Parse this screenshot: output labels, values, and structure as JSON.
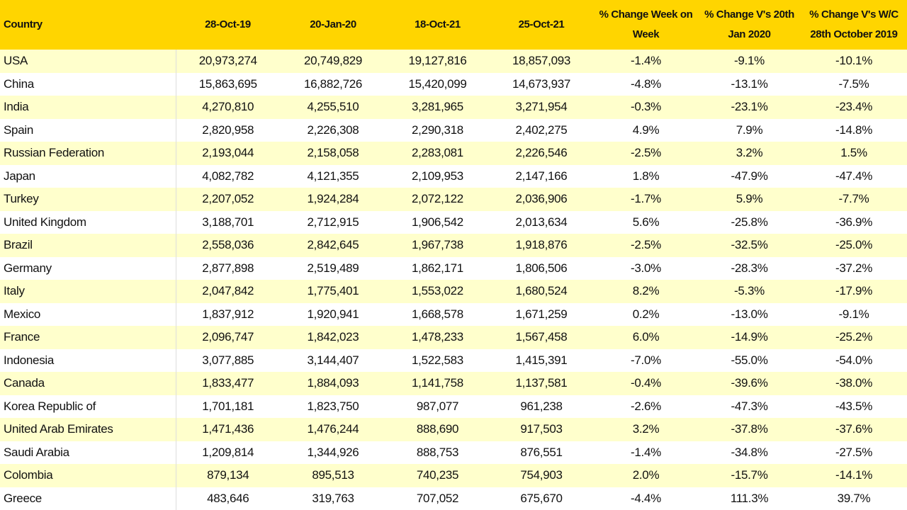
{
  "table": {
    "headers": [
      "Country",
      "28-Oct-19",
      "20-Jan-20",
      "18-Oct-21",
      "25-Oct-21",
      "% Change Week on Week",
      "% Change V's 20th Jan 2020",
      "% Change V's W/C 28th October 2019"
    ],
    "rows": [
      [
        "USA",
        "20,973,274",
        "20,749,829",
        "19,127,816",
        "18,857,093",
        "-1.4%",
        "-9.1%",
        "-10.1%"
      ],
      [
        "China",
        "15,863,695",
        "16,882,726",
        "15,420,099",
        "14,673,937",
        "-4.8%",
        "-13.1%",
        "-7.5%"
      ],
      [
        "India",
        "4,270,810",
        "4,255,510",
        "3,281,965",
        "3,271,954",
        "-0.3%",
        "-23.1%",
        "-23.4%"
      ],
      [
        "Spain",
        "2,820,958",
        "2,226,308",
        "2,290,318",
        "2,402,275",
        "4.9%",
        "7.9%",
        "-14.8%"
      ],
      [
        "Russian Federation",
        "2,193,044",
        "2,158,058",
        "2,283,081",
        "2,226,546",
        "-2.5%",
        "3.2%",
        "1.5%"
      ],
      [
        "Japan",
        "4,082,782",
        "4,121,355",
        "2,109,953",
        "2,147,166",
        "1.8%",
        "-47.9%",
        "-47.4%"
      ],
      [
        "Turkey",
        "2,207,052",
        "1,924,284",
        "2,072,122",
        "2,036,906",
        "-1.7%",
        "5.9%",
        "-7.7%"
      ],
      [
        "United Kingdom",
        "3,188,701",
        "2,712,915",
        "1,906,542",
        "2,013,634",
        "5.6%",
        "-25.8%",
        "-36.9%"
      ],
      [
        "Brazil",
        "2,558,036",
        "2,842,645",
        "1,967,738",
        "1,918,876",
        "-2.5%",
        "-32.5%",
        "-25.0%"
      ],
      [
        "Germany",
        "2,877,898",
        "2,519,489",
        "1,862,171",
        "1,806,506",
        "-3.0%",
        "-28.3%",
        "-37.2%"
      ],
      [
        "Italy",
        "2,047,842",
        "1,775,401",
        "1,553,022",
        "1,680,524",
        "8.2%",
        "-5.3%",
        "-17.9%"
      ],
      [
        "Mexico",
        "1,837,912",
        "1,920,941",
        "1,668,578",
        "1,671,259",
        "0.2%",
        "-13.0%",
        "-9.1%"
      ],
      [
        "France",
        "2,096,747",
        "1,842,023",
        "1,478,233",
        "1,567,458",
        "6.0%",
        "-14.9%",
        "-25.2%"
      ],
      [
        "Indonesia",
        "3,077,885",
        "3,144,407",
        "1,522,583",
        "1,415,391",
        "-7.0%",
        "-55.0%",
        "-54.0%"
      ],
      [
        "Canada",
        "1,833,477",
        "1,884,093",
        "1,141,758",
        "1,137,581",
        "-0.4%",
        "-39.6%",
        "-38.0%"
      ],
      [
        "Korea Republic of",
        "1,701,181",
        "1,823,750",
        "987,077",
        "961,238",
        "-2.6%",
        "-47.3%",
        "-43.5%"
      ],
      [
        "United Arab Emirates",
        "1,471,436",
        "1,476,244",
        "888,690",
        "917,503",
        "3.2%",
        "-37.8%",
        "-37.6%"
      ],
      [
        "Saudi Arabia",
        "1,209,814",
        "1,344,926",
        "888,753",
        "876,551",
        "-1.4%",
        "-34.8%",
        "-27.5%"
      ],
      [
        "Colombia",
        "879,134",
        "895,513",
        "740,235",
        "754,903",
        "2.0%",
        "-15.7%",
        "-14.1%"
      ],
      [
        "Greece",
        "483,646",
        "319,763",
        "707,052",
        "675,670",
        "-4.4%",
        "111.3%",
        "39.7%"
      ]
    ]
  }
}
